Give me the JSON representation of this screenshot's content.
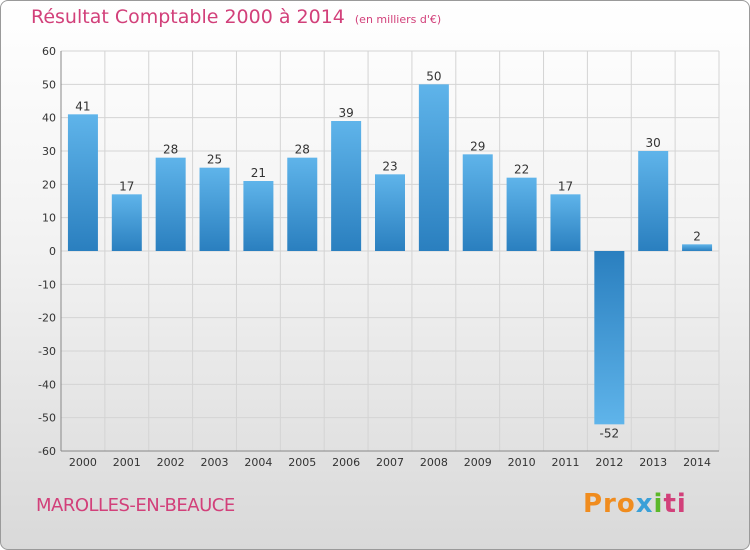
{
  "header": {
    "title": "Résultat Comptable 2000 à 2014",
    "unit": "(en milliers d'€)"
  },
  "footer": {
    "place": "MAROLLES-EN-BEAUCE",
    "logo": [
      "Pro",
      "x",
      "i",
      "ti"
    ]
  },
  "colors": {
    "title": "#d2407a",
    "bar_light": "#5fb4ea",
    "bar_dark": "#2a7fbf",
    "grid": "#d4d4d4",
    "axis_text": "#333333"
  },
  "chart_data": {
    "type": "bar",
    "title": "Résultat Comptable 2000 à 2014",
    "ylabel": "",
    "xlabel": "",
    "ylim": [
      -60,
      60
    ],
    "yticks": [
      60,
      50,
      40,
      30,
      20,
      10,
      0,
      -10,
      -20,
      -30,
      -40,
      -50,
      -60
    ],
    "categories": [
      "2000",
      "2001",
      "2002",
      "2003",
      "2004",
      "2005",
      "2006",
      "2007",
      "2008",
      "2009",
      "2010",
      "2011",
      "2012",
      "2013",
      "2014"
    ],
    "values": [
      41,
      17,
      28,
      25,
      21,
      28,
      39,
      23,
      50,
      29,
      22,
      17,
      -52,
      30,
      2
    ],
    "grid": true,
    "legend": "none"
  }
}
